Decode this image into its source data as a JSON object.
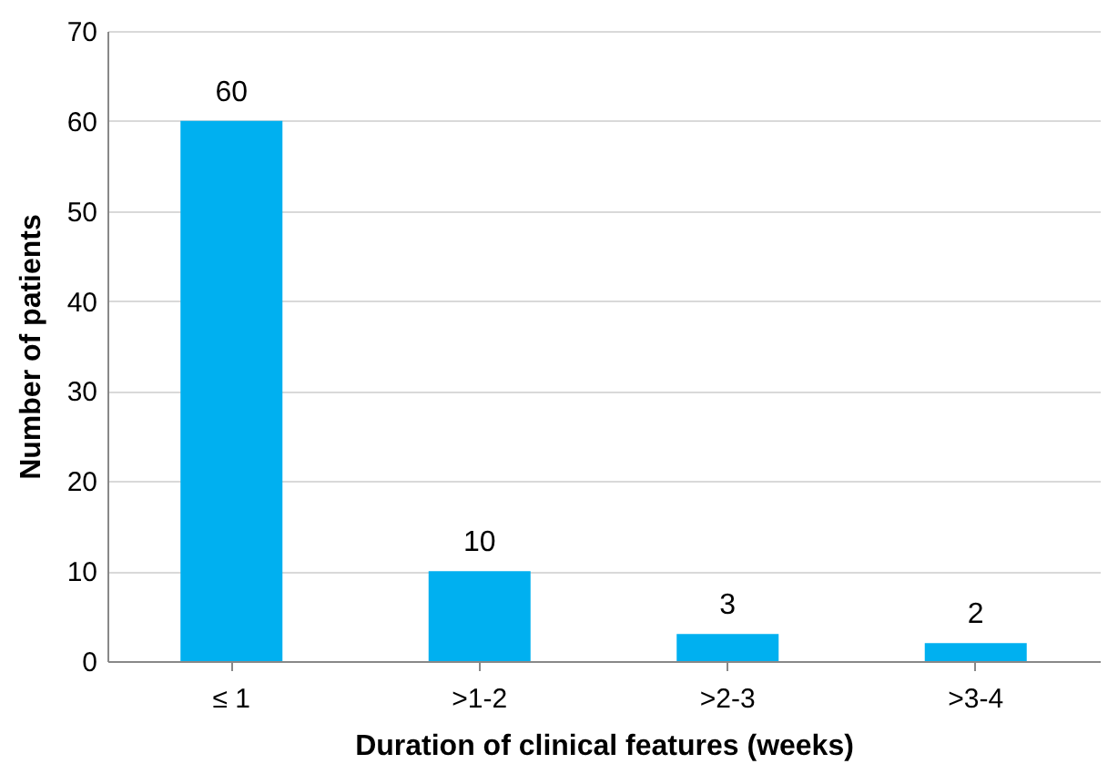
{
  "chart_data": {
    "type": "bar",
    "xlabel": "Duration of clinical features (weeks)",
    "ylabel": "Number of patients",
    "categories": [
      "≤ 1",
      ">1-2",
      ">2-3",
      ">3-4"
    ],
    "values": [
      60,
      10,
      3,
      2
    ],
    "color": "#00b0f0",
    "ylim": [
      0,
      70
    ],
    "yticks": [
      0,
      10,
      20,
      30,
      40,
      50,
      60,
      70
    ],
    "grid": "y",
    "data_labels": true
  }
}
